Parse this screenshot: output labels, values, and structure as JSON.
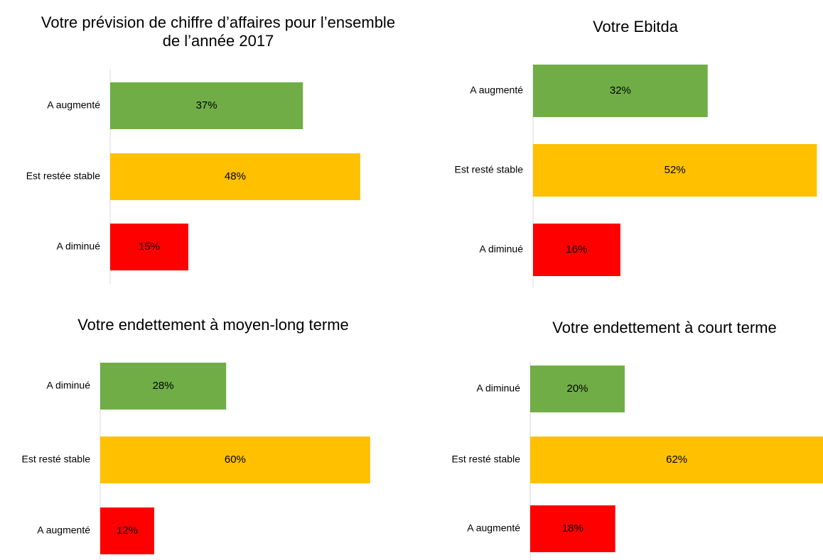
{
  "chart_data": [
    {
      "type": "bar",
      "orientation": "horizontal",
      "title": "Votre prévision de chiffre d’affaires pour l’ensemble de l’année 2017",
      "categories": [
        "A augmenté",
        "Est restée stable",
        "A diminué"
      ],
      "values": [
        37,
        48,
        15
      ],
      "value_labels": [
        "37%",
        "48%",
        "15%"
      ],
      "colors": [
        "#70ad47",
        "#ffc000",
        "#ff0000"
      ]
    },
    {
      "type": "bar",
      "orientation": "horizontal",
      "title": "Votre Ebitda",
      "categories": [
        "A augmenté",
        "Est resté stable",
        "A diminué"
      ],
      "values": [
        32,
        52,
        16
      ],
      "value_labels": [
        "32%",
        "52%",
        "16%"
      ],
      "colors": [
        "#70ad47",
        "#ffc000",
        "#ff0000"
      ]
    },
    {
      "type": "bar",
      "orientation": "horizontal",
      "title": "Votre endettement à moyen-long terme",
      "categories": [
        "A diminué",
        "Est resté stable",
        "A augmenté"
      ],
      "values": [
        28,
        60,
        12
      ],
      "value_labels": [
        "28%",
        "60%",
        "12%"
      ],
      "colors": [
        "#70ad47",
        "#ffc000",
        "#ff0000"
      ]
    },
    {
      "type": "bar",
      "orientation": "horizontal",
      "title": "Votre endettement à court terme",
      "categories": [
        "A diminué",
        "Est resté stable",
        "A augmenté"
      ],
      "values": [
        20,
        62,
        18
      ],
      "value_labels": [
        "20%",
        "62%",
        "18%"
      ],
      "colors": [
        "#70ad47",
        "#ffc000",
        "#ff0000"
      ]
    }
  ]
}
